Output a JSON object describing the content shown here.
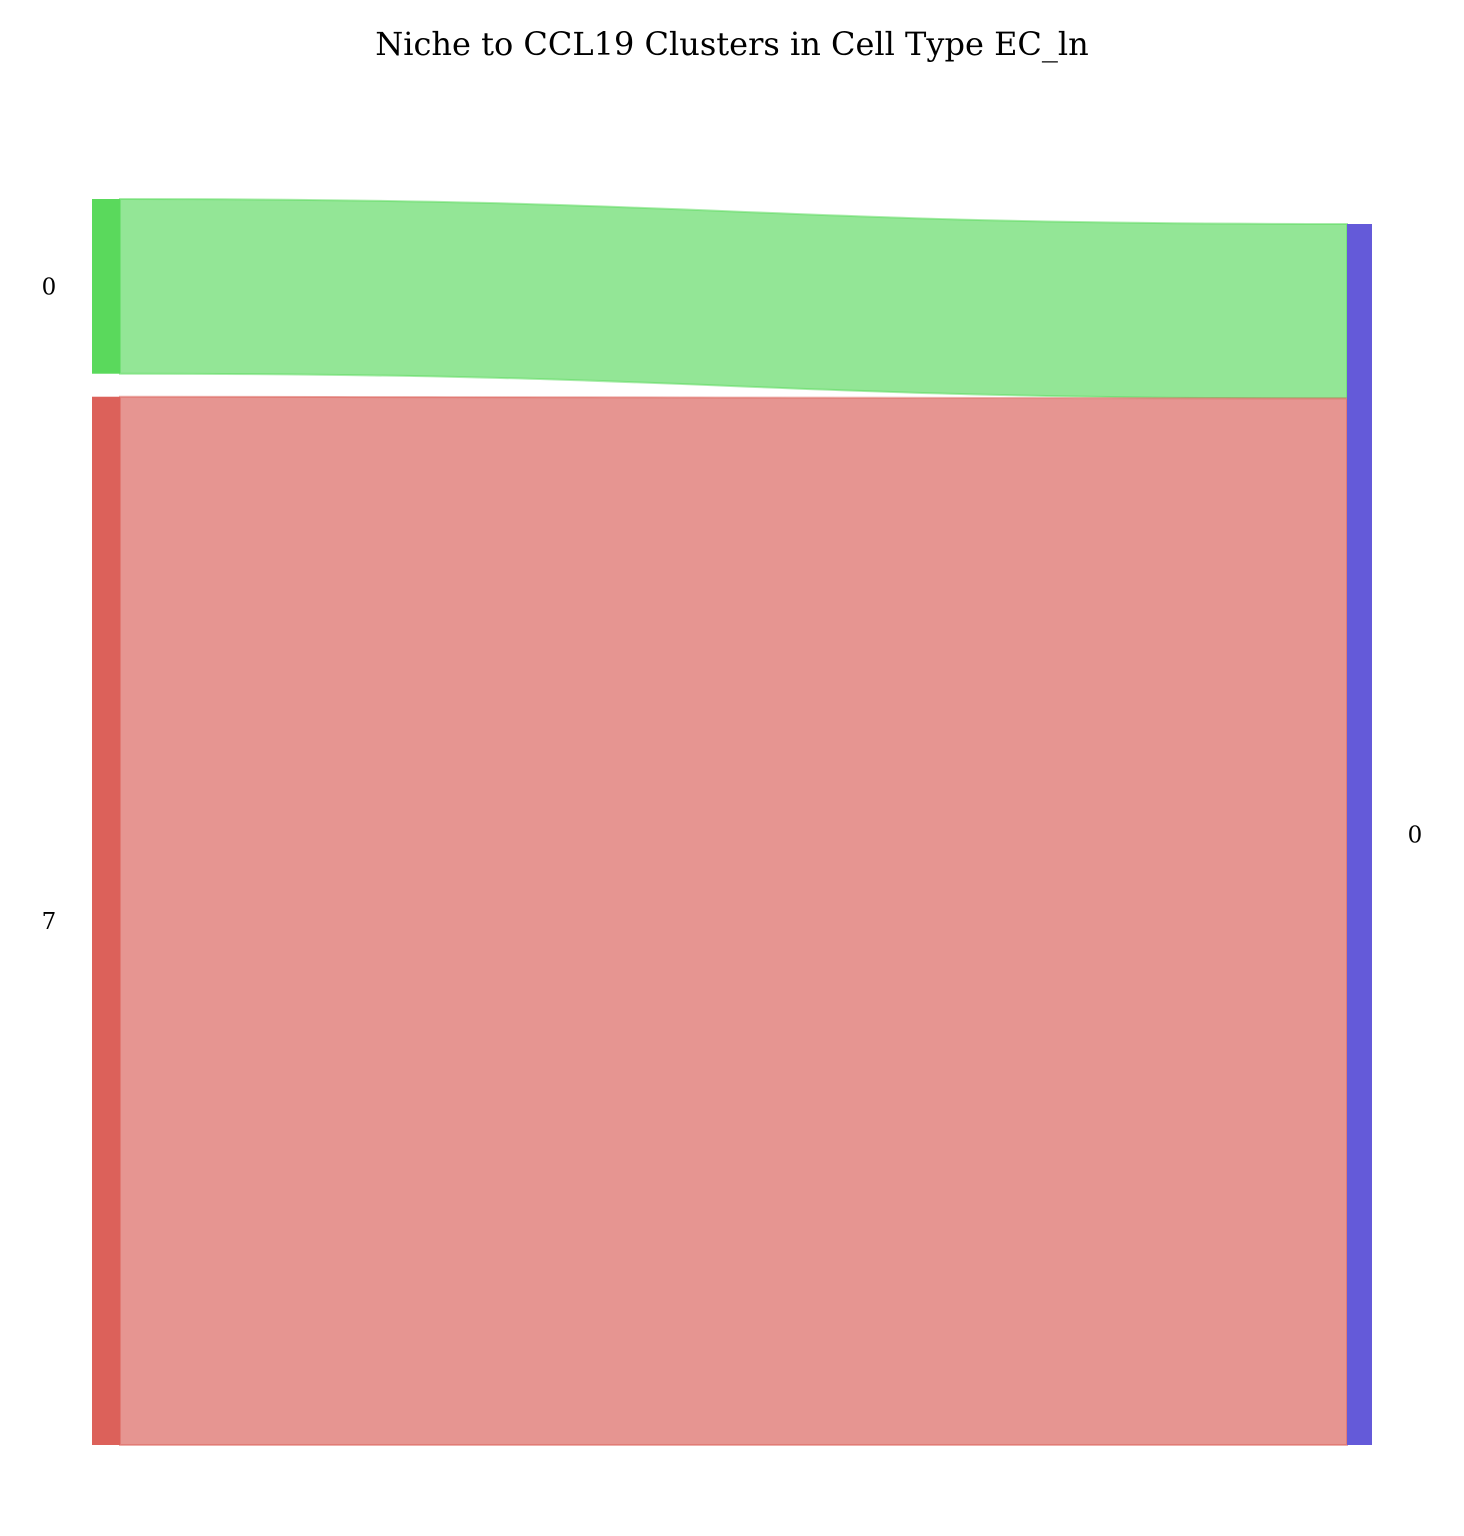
{
  "chart_data": {
    "type": "sankey",
    "title": "Niche to CCL19 Clusters in Cell Type EC_ln",
    "source_nodes": [
      {
        "label": "0",
        "value": 1,
        "color": "#5ad95c"
      },
      {
        "label": "7",
        "value": 6,
        "color": "#dc615a"
      }
    ],
    "target_nodes": [
      {
        "label": "0",
        "value": 7,
        "color": "#645ad9"
      }
    ],
    "flows": [
      {
        "source": 0,
        "target": 0,
        "value": 1,
        "color": "#93e696"
      },
      {
        "source": 1,
        "target": 0,
        "value": 6,
        "color": "#e69591"
      }
    ]
  }
}
